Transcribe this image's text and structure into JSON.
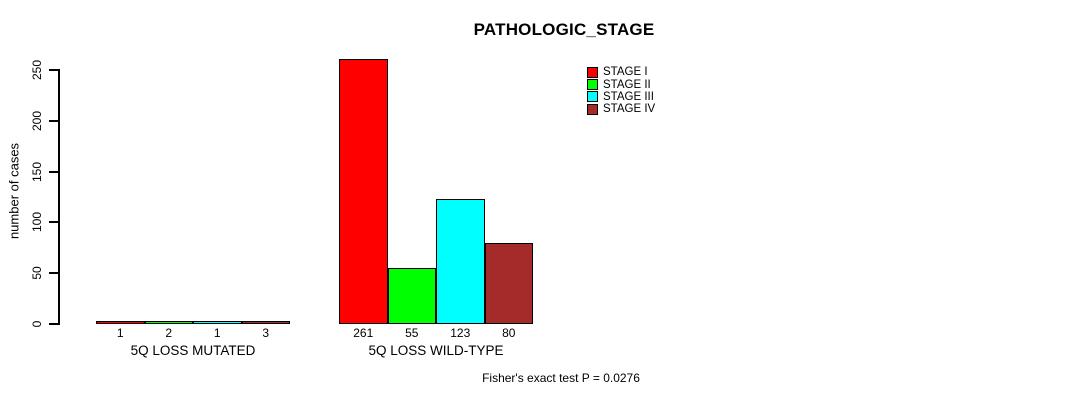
{
  "chart_data": {
    "type": "bar",
    "title": "PATHOLOGIC_STAGE",
    "ylabel": "number of cases",
    "ylim": [
      0,
      250
    ],
    "yticks": [
      0,
      50,
      100,
      150,
      200,
      250
    ],
    "grid": false,
    "legend_position": "top-right",
    "bar_value_labels": true,
    "categories": [
      "5Q LOSS MUTATED",
      "5Q LOSS WILD-TYPE"
    ],
    "series": [
      {
        "name": "STAGE I",
        "color": "#FF0000",
        "values": [
          1,
          261
        ]
      },
      {
        "name": "STAGE II",
        "color": "#00FF00",
        "values": [
          2,
          55
        ]
      },
      {
        "name": "STAGE III",
        "color": "#00FFFF",
        "values": [
          1,
          123
        ]
      },
      {
        "name": "STAGE IV",
        "color": "#A52A2A",
        "values": [
          3,
          80
        ]
      }
    ],
    "annotation": "Fisher's exact test P = 0.0276"
  }
}
